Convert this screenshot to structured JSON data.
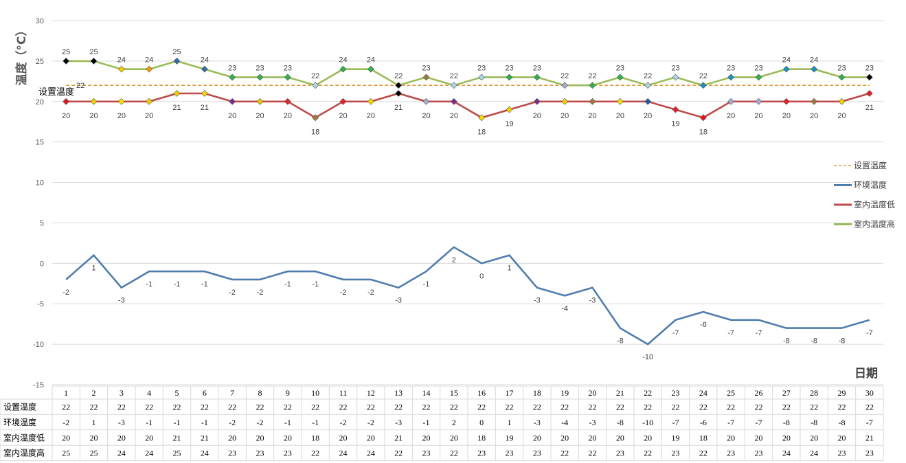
{
  "chart_data": {
    "type": "line",
    "ylabel": "温度（°C）",
    "xlabel": "日期",
    "ylim": [
      -15,
      30
    ],
    "yticks": [
      -15,
      -10,
      -5,
      0,
      5,
      10,
      15,
      20,
      25,
      30
    ],
    "grid": true,
    "legend_position": "right",
    "categories": [
      "1",
      "2",
      "3",
      "4",
      "5",
      "6",
      "7",
      "8",
      "9",
      "10",
      "11",
      "12",
      "13",
      "14",
      "15",
      "16",
      "17",
      "18",
      "19",
      "20",
      "21",
      "22",
      "23",
      "24",
      "25",
      "26",
      "27",
      "28",
      "29",
      "30"
    ],
    "annotation": "设置温度",
    "series": [
      {
        "name": "设置温度",
        "color": "#E39A35",
        "style": "dashed",
        "values": [
          22,
          22,
          22,
          22,
          22,
          22,
          22,
          22,
          22,
          22,
          22,
          22,
          22,
          22,
          22,
          22,
          22,
          22,
          22,
          22,
          22,
          22,
          22,
          22,
          22,
          22,
          22,
          22,
          22,
          22
        ]
      },
      {
        "name": "环境温度",
        "color": "#4F7DAD",
        "style": "solid",
        "values": [
          -2,
          1,
          -3,
          -1,
          -1,
          -1,
          -2,
          -2,
          -1,
          -1,
          -2,
          -2,
          -3,
          -1,
          2,
          0,
          1,
          -3,
          -4,
          -3,
          -8,
          -10,
          -7,
          -6,
          -7,
          -7,
          -8,
          -8,
          -8,
          -7
        ]
      },
      {
        "name": "室内温度低",
        "color": "#BE4B48",
        "style": "solid",
        "values": [
          20,
          20,
          20,
          20,
          21,
          21,
          20,
          20,
          20,
          18,
          20,
          20,
          21,
          20,
          20,
          18,
          19,
          20,
          20,
          20,
          20,
          20,
          19,
          18,
          20,
          20,
          20,
          20,
          20,
          21
        ],
        "marker_colors": [
          "#E8131B",
          "#F5D000",
          "#FFE600",
          "#F4D000",
          "#F4D200",
          "#FFD600",
          "#7A2D8C",
          "#F1C800",
          "#E5232A",
          "#A1793C",
          "#E5232A",
          "#FFD600",
          "#000000",
          "#A9A9D0",
          "#7A2D8C",
          "#F6E000",
          "#F5D000",
          "#7A2D8C",
          "#F5D000",
          "#A1793C",
          "#F6E000",
          "#1F5FA8",
          "#E5232A",
          "#E8131B",
          "#A9A9D0",
          "#A9A9D0",
          "#E5232A",
          "#A1793C",
          "#F5D000",
          "#E5232A"
        ]
      },
      {
        "name": "室内温度高",
        "color": "#9BBB59",
        "style": "solid",
        "values": [
          25,
          25,
          24,
          24,
          25,
          24,
          23,
          23,
          23,
          22,
          24,
          24,
          22,
          23,
          22,
          23,
          23,
          23,
          22,
          22,
          23,
          22,
          23,
          22,
          23,
          23,
          24,
          24,
          23,
          23
        ],
        "marker_colors": [
          "#000000",
          "#000000",
          "#F5D000",
          "#F4A000",
          "#2A6FA8",
          "#2A6FA8",
          "#2FB34A",
          "#2FB34A",
          "#2FB34A",
          "#A8D6EB",
          "#2FB34A",
          "#2FB34A",
          "#000000",
          "#A1793C",
          "#A8D6EB",
          "#A8D6EB",
          "#2FB34A",
          "#2FB34A",
          "#A9A9D0",
          "#2FB34A",
          "#2FB34A",
          "#A8D6EB",
          "#A8D6EB",
          "#1F8FC8",
          "#1F8FC8",
          "#2FB34A",
          "#1F8FC8",
          "#1F8FC8",
          "#2FB34A",
          "#000000"
        ]
      }
    ],
    "table": {
      "rows": [
        {
          "label": "设置温度",
          "values": [
            22,
            22,
            22,
            22,
            22,
            22,
            22,
            22,
            22,
            22,
            22,
            22,
            22,
            22,
            22,
            22,
            22,
            22,
            22,
            22,
            22,
            22,
            22,
            22,
            22,
            22,
            22,
            22,
            22,
            22
          ]
        },
        {
          "label": "环境温度",
          "values": [
            -2,
            1,
            -3,
            -1,
            -1,
            -1,
            -2,
            -2,
            -1,
            -1,
            -2,
            -2,
            -3,
            -1,
            2,
            0,
            1,
            -3,
            -4,
            -3,
            -8,
            -10,
            -7,
            -6,
            -7,
            -7,
            -8,
            -8,
            -8,
            -7
          ]
        },
        {
          "label": "室内温度低",
          "values": [
            20,
            20,
            20,
            20,
            21,
            21,
            20,
            20,
            20,
            18,
            20,
            20,
            21,
            20,
            20,
            18,
            19,
            20,
            20,
            20,
            20,
            20,
            19,
            18,
            20,
            20,
            20,
            20,
            20,
            21
          ]
        },
        {
          "label": "室内温度高",
          "values": [
            25,
            25,
            24,
            24,
            25,
            24,
            23,
            23,
            23,
            22,
            24,
            24,
            22,
            23,
            22,
            23,
            23,
            23,
            22,
            22,
            23,
            22,
            23,
            22,
            23,
            23,
            24,
            24,
            23,
            23
          ]
        }
      ]
    }
  }
}
